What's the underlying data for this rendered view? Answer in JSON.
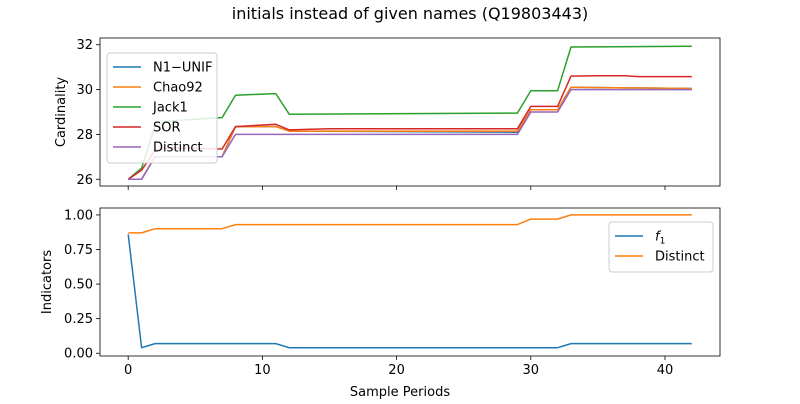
{
  "title": "initials instead of given names (Q19803443)",
  "chart_data": [
    {
      "type": "line",
      "xlabel": "",
      "ylabel": "Cardinality",
      "xlim": [
        -2.1,
        44.1
      ],
      "ylim": [
        25.7,
        32.3
      ],
      "yticks": [
        26,
        28,
        30,
        32
      ],
      "xticks": [
        0,
        10,
        20,
        30,
        40
      ],
      "show_xtick_labels": false,
      "grid": false,
      "legend_position": "upper-left",
      "series": [
        {
          "name": "N1−UNIF",
          "color": "#1f77b4",
          "x": [
            0,
            1,
            2,
            7,
            8,
            11,
            12,
            29,
            30,
            32,
            33,
            42
          ],
          "y": [
            26.0,
            26.0,
            27.0,
            27.0,
            28.35,
            28.35,
            28.15,
            28.1,
            29.1,
            29.1,
            30.1,
            30.05
          ]
        },
        {
          "name": "Chao92",
          "color": "#ff7f0e",
          "x": [
            0,
            1,
            2,
            7,
            8,
            11,
            12,
            29,
            30,
            32,
            33,
            42
          ],
          "y": [
            26.0,
            26.0,
            27.0,
            27.0,
            28.35,
            28.35,
            28.15,
            28.15,
            29.1,
            29.1,
            30.1,
            30.05
          ]
        },
        {
          "name": "Jack1",
          "color": "#2ca02c",
          "x": [
            0,
            1,
            2,
            3,
            7,
            8,
            11,
            12,
            29,
            30,
            32,
            33,
            42
          ],
          "y": [
            26.0,
            26.5,
            28.4,
            28.6,
            28.75,
            29.75,
            29.82,
            28.9,
            28.95,
            29.95,
            29.95,
            31.9,
            31.93
          ]
        },
        {
          "name": "SOR",
          "color": "#d62728",
          "x": [
            0,
            1,
            2,
            3,
            7,
            8,
            11,
            12,
            15,
            29,
            30,
            32,
            33,
            35,
            37,
            38,
            42
          ],
          "y": [
            26.0,
            26.4,
            27.3,
            27.4,
            27.35,
            28.35,
            28.45,
            28.2,
            28.25,
            28.25,
            29.25,
            29.25,
            30.6,
            30.62,
            30.62,
            30.58,
            30.58
          ]
        },
        {
          "name": "Distinct",
          "color": "#9467bd",
          "x": [
            0,
            1,
            2,
            7,
            8,
            29,
            30,
            32,
            33,
            42
          ],
          "y": [
            26.0,
            26.0,
            27.0,
            27.0,
            28.0,
            28.0,
            29.0,
            29.0,
            30.0,
            30.0
          ]
        }
      ]
    },
    {
      "type": "line",
      "xlabel": "Sample Periods",
      "ylabel": "Indicators",
      "xlim": [
        -2.1,
        44.1
      ],
      "ylim": [
        -0.02,
        1.05
      ],
      "yticks": [
        0.0,
        0.25,
        0.5,
        0.75,
        1.0
      ],
      "xticks": [
        0,
        10,
        20,
        30,
        40
      ],
      "show_xtick_labels": true,
      "grid": false,
      "legend_position": "upper-right",
      "series": [
        {
          "name": "f1",
          "name_main": "f",
          "name_sub": "1",
          "color": "#1f77b4",
          "x": [
            0,
            1,
            2,
            11,
            12,
            32,
            33,
            42
          ],
          "y": [
            0.86,
            0.04,
            0.07,
            0.07,
            0.04,
            0.04,
            0.07,
            0.07
          ]
        },
        {
          "name": "Distinct",
          "color": "#ff7f0e",
          "x": [
            0,
            1,
            2,
            7,
            8,
            29,
            30,
            32,
            33,
            42
          ],
          "y": [
            0.87,
            0.87,
            0.9,
            0.9,
            0.93,
            0.93,
            0.97,
            0.97,
            1.0,
            1.0
          ]
        }
      ]
    }
  ]
}
